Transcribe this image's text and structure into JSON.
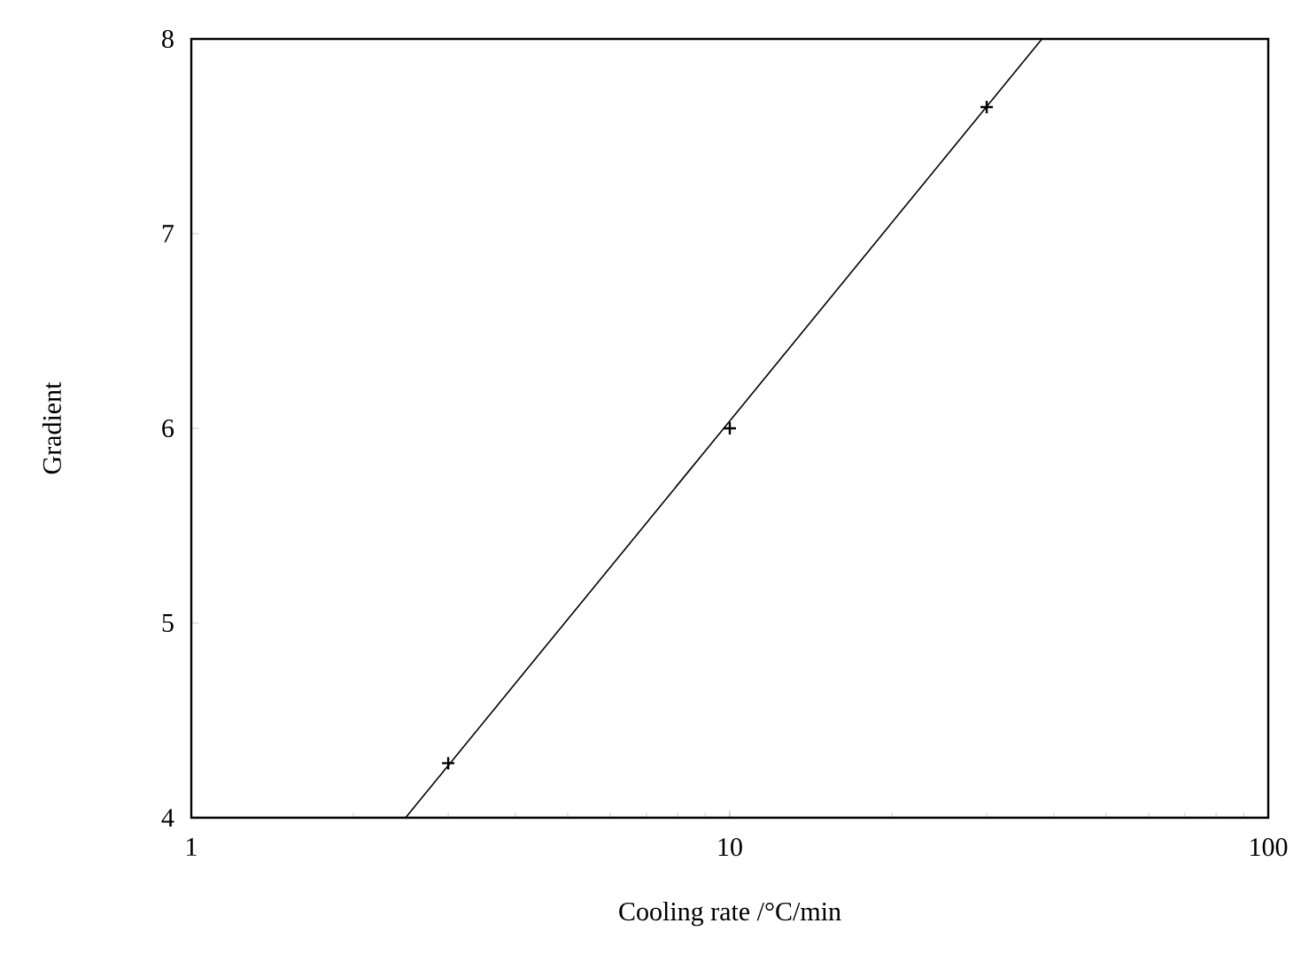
{
  "chart_data": {
    "type": "scatter",
    "xlabel": "Cooling rate /°C/min",
    "ylabel": "Gradient",
    "log": "x",
    "xlim": [
      1,
      100
    ],
    "xticks": [
      1,
      10,
      100
    ],
    "ylim": [
      4,
      8
    ],
    "yticks": [
      4,
      5,
      6,
      7,
      8
    ],
    "marker": "cross",
    "series": [
      {
        "color": "#000000",
        "x": [
          3,
          10,
          30
        ],
        "values": [
          4.28,
          6.0,
          7.65
        ]
      },
      {
        "type": "line",
        "color": "#000000",
        "marker": "none",
        "x": [
          2.5,
          38
        ],
        "values": [
          4,
          8
        ]
      }
    ]
  }
}
